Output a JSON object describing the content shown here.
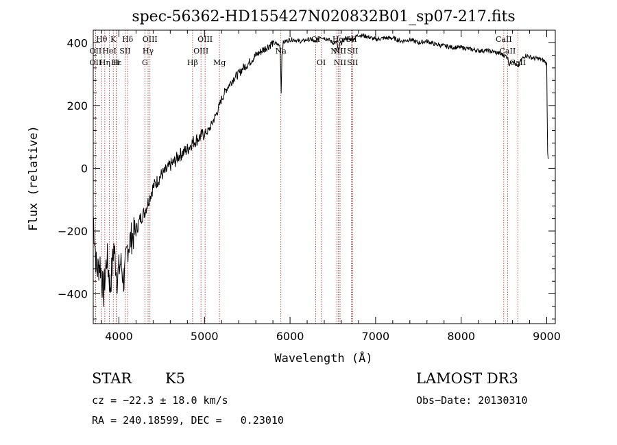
{
  "chart_data": {
    "type": "line",
    "title": "spec-56362-HD155427N020832B01_sp07-217.fits",
    "xlabel": "Wavelength (Å)",
    "ylabel": "Flux (relative)",
    "xlim": [
      3700,
      9100
    ],
    "ylim": [
      -495,
      440
    ],
    "x_ticks": [
      4000,
      5000,
      6000,
      7000,
      8000,
      9000
    ],
    "x_tick_labels": [
      "4000",
      "5000",
      "6000",
      "7000",
      "8000",
      "9000"
    ],
    "y_ticks": [
      -400,
      -200,
      0,
      200,
      400
    ],
    "y_tick_labels": [
      "−400",
      "−200",
      "0",
      "200",
      "400"
    ],
    "grid": false,
    "series": [
      {
        "name": "spectrum",
        "x": [
          3700,
          3740,
          3780,
          3820,
          3860,
          3900,
          3940,
          3980,
          4020,
          4060,
          4100,
          4150,
          4200,
          4250,
          4300,
          4350,
          4400,
          4450,
          4500,
          4550,
          4600,
          4650,
          4700,
          4750,
          4800,
          4850,
          4900,
          4950,
          5000,
          5050,
          5100,
          5150,
          5200,
          5250,
          5300,
          5350,
          5400,
          5450,
          5500,
          5550,
          5600,
          5650,
          5700,
          5750,
          5800,
          5850,
          5880,
          5890,
          5896,
          5905,
          5920,
          5950,
          6000,
          6050,
          6100,
          6150,
          6200,
          6250,
          6300,
          6350,
          6400,
          6450,
          6500,
          6550,
          6563,
          6580,
          6600,
          6650,
          6700,
          6750,
          6800,
          6900,
          7000,
          7100,
          7200,
          7300,
          7400,
          7500,
          7600,
          7700,
          7800,
          7900,
          8000,
          8100,
          8200,
          8300,
          8400,
          8450,
          8500,
          8542,
          8560,
          8600,
          8662,
          8700,
          8750,
          8800,
          8850,
          8900,
          8950,
          8980,
          9000,
          9010,
          9020
        ],
        "y": [
          -150,
          -330,
          -300,
          -400,
          -280,
          -380,
          -250,
          -350,
          -300,
          -360,
          -250,
          -220,
          -200,
          -160,
          -140,
          -100,
          -60,
          -40,
          -20,
          -10,
          10,
          20,
          40,
          50,
          60,
          80,
          90,
          100,
          110,
          120,
          150,
          180,
          220,
          250,
          270,
          290,
          300,
          320,
          330,
          345,
          360,
          370,
          380,
          390,
          400,
          395,
          390,
          330,
          240,
          360,
          400,
          405,
          410,
          410,
          405,
          405,
          410,
          410,
          400,
          420,
          415,
          410,
          400,
          400,
          370,
          395,
          400,
          415,
          410,
          415,
          425,
          420,
          410,
          415,
          415,
          405,
          410,
          400,
          405,
          395,
          390,
          385,
          385,
          380,
          375,
          375,
          370,
          365,
          360,
          355,
          330,
          345,
          320,
          345,
          360,
          355,
          350,
          350,
          345,
          340,
          330,
          50,
          30
        ]
      }
    ],
    "spectral_lines": [
      {
        "label": "Hθ",
        "wavelength": 3798,
        "row": 0
      },
      {
        "label": "K",
        "wavelength": 3934,
        "row": 0
      },
      {
        "label": "Hδ",
        "wavelength": 4102,
        "row": 0
      },
      {
        "label": "OIII",
        "wavelength": 4363,
        "row": 0
      },
      {
        "label": "OIII",
        "wavelength": 5007,
        "row": 0
      },
      {
        "label": "OI",
        "wavelength": 6300,
        "row": 0
      },
      {
        "label": "Hα",
        "wavelength": 6563,
        "row": 0
      },
      {
        "label": "SII",
        "wavelength": 6717,
        "row": 0
      },
      {
        "label": "CaII",
        "wavelength": 8498,
        "row": 0
      },
      {
        "label": "OII",
        "wavelength": 3727,
        "row": 1
      },
      {
        "label": "HeI",
        "wavelength": 3889,
        "row": 1
      },
      {
        "label": "SII",
        "wavelength": 4072,
        "row": 1
      },
      {
        "label": "Hγ",
        "wavelength": 4341,
        "row": 1
      },
      {
        "label": "OIII",
        "wavelength": 4959,
        "row": 1
      },
      {
        "label": "Na",
        "wavelength": 5893,
        "row": 1
      },
      {
        "label": "NII",
        "wavelength": 6548,
        "row": 1
      },
      {
        "label": "NII",
        "wavelength": 6584,
        "row": 1
      },
      {
        "label": "SII",
        "wavelength": 6731,
        "row": 1
      },
      {
        "label": "CaII",
        "wavelength": 8542,
        "row": 1
      },
      {
        "label": "OII",
        "wavelength": 3727,
        "row": 2
      },
      {
        "label": "Hε",
        "wavelength": 3970,
        "row": 2
      },
      {
        "label": "Hη",
        "wavelength": 3835,
        "row": 2
      },
      {
        "label": "H",
        "wavelength": 3968,
        "row": 2
      },
      {
        "label": "G",
        "wavelength": 4304,
        "row": 2
      },
      {
        "label": "Hβ",
        "wavelength": 4861,
        "row": 2
      },
      {
        "label": "Mg",
        "wavelength": 5175,
        "row": 2
      },
      {
        "label": "OI",
        "wavelength": 6364,
        "row": 2
      },
      {
        "label": "NII",
        "wavelength": 6584,
        "row": 2
      },
      {
        "label": "SII",
        "wavelength": 6731,
        "row": 2
      },
      {
        "label": "CaII",
        "wavelength": 8662,
        "row": 2
      }
    ]
  },
  "info": {
    "object_class": "STAR",
    "subclass": "K5",
    "survey": "LAMOST DR3",
    "cz": "cz = −22.3 ± 18.0 km/s",
    "obs_date": "Obs−Date: 20130310",
    "coords": "RA = 240.18599, DEC =   0.23010"
  },
  "colors": {
    "spectrum": "#000000",
    "line_marker": "#b22222",
    "axes": "#000000"
  }
}
